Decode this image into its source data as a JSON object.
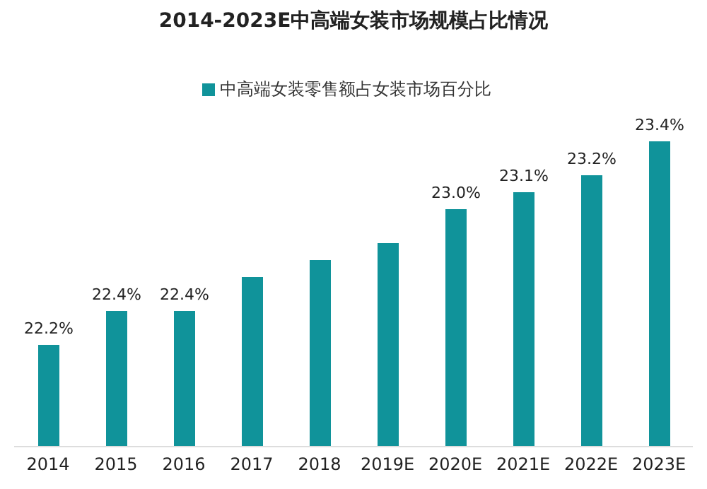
{
  "chart_data": {
    "type": "bar",
    "title": "2014-2023E中高端女装市场规模占比情况",
    "categories": [
      "2014",
      "2015",
      "2016",
      "2017",
      "2018",
      "2019E",
      "2020E",
      "2021E",
      "2022E",
      "2023E"
    ],
    "series": [
      {
        "name": "中高端女装零售额占女装市场百分比",
        "color": "#10939a",
        "values": [
          22.2,
          22.4,
          22.4,
          22.6,
          22.7,
          22.8,
          23.0,
          23.1,
          23.2,
          23.4
        ],
        "value_labels": [
          "22.2%",
          "22.4%",
          "22.4%",
          null,
          null,
          null,
          "23.0%",
          "23.1%",
          "23.2%",
          "23.4%"
        ]
      }
    ],
    "ylim": [
      21.6,
      23.4
    ],
    "tick_labels": "x",
    "legend": "top",
    "grid": false
  }
}
